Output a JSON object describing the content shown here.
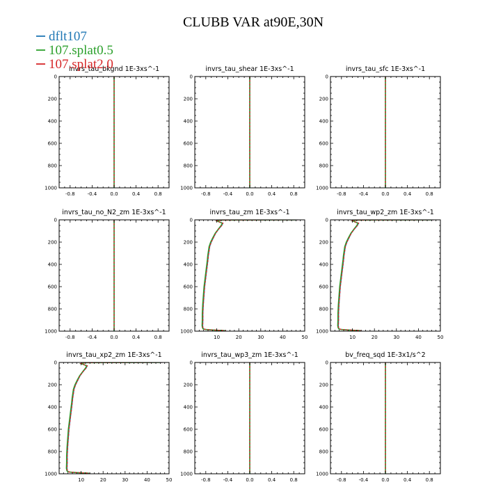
{
  "figure": {
    "title": "CLUBB VAR at90E,30N"
  },
  "legend": [
    {
      "name": "dflt107",
      "color": "#1f77b4"
    },
    {
      "name": "107.splat0.5",
      "color": "#2ca02c"
    },
    {
      "name": "107.splat2.0",
      "color": "#d62728"
    }
  ],
  "chart_data": [
    {
      "type": "line",
      "title": "invrs_tau_bkgnd 1E-3xs^-1",
      "xlim": [
        -1,
        1
      ],
      "ylim": [
        1000,
        0
      ],
      "xticks": [
        "-0.8",
        "-0.4",
        "0.0",
        "0.4",
        "0.8"
      ],
      "xtick_values": [
        -0.8,
        -0.4,
        0,
        0.4,
        0.8
      ],
      "yticks": [
        "0",
        "200",
        "400",
        "600",
        "800",
        "1000"
      ],
      "ytick_values": [
        0,
        200,
        400,
        600,
        800,
        1000
      ],
      "series": [
        {
          "name": "dflt107",
          "x": [
            0,
            0
          ],
          "y": [
            0,
            1000
          ]
        },
        {
          "name": "107.splat0.5",
          "x": [
            0,
            0
          ],
          "y": [
            0,
            1000
          ]
        },
        {
          "name": "107.splat2.0",
          "x": [
            0,
            0
          ],
          "y": [
            0,
            1000
          ]
        }
      ]
    },
    {
      "type": "line",
      "title": "invrs_tau_shear 1E-3xs^-1",
      "xlim": [
        -1,
        1
      ],
      "ylim": [
        1000,
        0
      ],
      "xticks": [
        "-0.8",
        "-0.4",
        "0.0",
        "0.4",
        "0.8"
      ],
      "xtick_values": [
        -0.8,
        -0.4,
        0,
        0.4,
        0.8
      ],
      "yticks": [
        "0",
        "200",
        "400",
        "600",
        "800",
        "1000"
      ],
      "ytick_values": [
        0,
        200,
        400,
        600,
        800,
        1000
      ],
      "series": [
        {
          "name": "dflt107",
          "x": [
            0,
            0
          ],
          "y": [
            0,
            1000
          ]
        },
        {
          "name": "107.splat0.5",
          "x": [
            0,
            0
          ],
          "y": [
            0,
            1000
          ]
        },
        {
          "name": "107.splat2.0",
          "x": [
            0,
            0
          ],
          "y": [
            0,
            1000
          ]
        }
      ]
    },
    {
      "type": "line",
      "title": "invrs_tau_sfc 1E-3xs^-1",
      "xlim": [
        -1,
        1
      ],
      "ylim": [
        1000,
        0
      ],
      "xticks": [
        "-0.8",
        "-0.4",
        "0.0",
        "0.4",
        "0.8"
      ],
      "xtick_values": [
        -0.8,
        -0.4,
        0,
        0.4,
        0.8
      ],
      "yticks": [
        "0",
        "200",
        "400",
        "600",
        "800",
        "1000"
      ],
      "ytick_values": [
        0,
        200,
        400,
        600,
        800,
        1000
      ],
      "series": [
        {
          "name": "dflt107",
          "x": [
            0,
            0
          ],
          "y": [
            0,
            1000
          ]
        },
        {
          "name": "107.splat0.5",
          "x": [
            0,
            0
          ],
          "y": [
            0,
            1000
          ]
        },
        {
          "name": "107.splat2.0",
          "x": [
            0,
            0
          ],
          "y": [
            0,
            1000
          ]
        }
      ]
    },
    {
      "type": "line",
      "title": "invrs_tau_no_N2_zm 1E-3xs^-1",
      "xlim": [
        -1,
        1
      ],
      "ylim": [
        1000,
        0
      ],
      "xticks": [
        "-0.8",
        "-0.4",
        "0.0",
        "0.4",
        "0.8"
      ],
      "xtick_values": [
        -0.8,
        -0.4,
        0,
        0.4,
        0.8
      ],
      "yticks": [
        "0",
        "200",
        "400",
        "600",
        "800",
        "1000"
      ],
      "ytick_values": [
        0,
        200,
        400,
        600,
        800,
        1000
      ],
      "series": [
        {
          "name": "dflt107",
          "x": [
            0,
            0
          ],
          "y": [
            0,
            1000
          ]
        },
        {
          "name": "107.splat0.5",
          "x": [
            0,
            0
          ],
          "y": [
            0,
            1000
          ]
        },
        {
          "name": "107.splat2.0",
          "x": [
            0,
            0
          ],
          "y": [
            0,
            1000
          ]
        }
      ]
    },
    {
      "type": "line",
      "title": "invrs_tau_zm 1E-3xs^-1",
      "xlim": [
        0,
        50
      ],
      "ylim": [
        1000,
        0
      ],
      "xticks": [
        "10",
        "20",
        "30",
        "40",
        "50"
      ],
      "xtick_values": [
        10,
        20,
        30,
        40,
        50
      ],
      "yticks": [
        "0",
        "200",
        "400",
        "600",
        "800",
        "1000"
      ],
      "ytick_values": [
        0,
        200,
        400,
        600,
        800,
        1000
      ],
      "series": [
        {
          "name": "dflt107",
          "x": [
            47,
            12,
            10,
            12.8,
            12.3,
            11,
            9.5,
            8.5,
            7.5,
            6.8,
            6.5,
            6.2,
            6.0,
            5.5,
            5.0,
            4.5,
            4.2,
            3.9,
            3.7,
            3.7,
            3.6,
            3.7,
            4.0,
            5.0,
            9.0,
            14.0
          ],
          "y": [
            0,
            2,
            10,
            30,
            50,
            80,
            120,
            160,
            200,
            240,
            280,
            320,
            360,
            440,
            520,
            600,
            680,
            760,
            840,
            900,
            950,
            970,
            980,
            985,
            990,
            995
          ]
        },
        {
          "name": "107.splat0.5",
          "x": [
            46,
            12,
            10,
            12.5,
            12.0,
            10.8,
            9.3,
            8.2,
            7.2,
            6.5,
            6.2,
            5.9,
            5.7,
            5.2,
            4.7,
            4.2,
            3.9,
            3.6,
            3.4,
            3.4,
            3.3,
            3.5,
            3.8,
            4.8,
            8.5,
            13.5
          ],
          "y": [
            0,
            2,
            10,
            30,
            50,
            80,
            120,
            160,
            200,
            240,
            280,
            320,
            360,
            440,
            520,
            600,
            680,
            760,
            840,
            900,
            950,
            970,
            980,
            985,
            990,
            995
          ]
        },
        {
          "name": "107.splat2.0",
          "x": [
            47,
            12,
            10,
            12.8,
            12.3,
            11,
            9.5,
            8.5,
            7.5,
            6.8,
            6.5,
            6.2,
            6.0,
            5.5,
            5.0,
            4.5,
            4.2,
            3.9,
            3.7,
            3.7,
            3.6,
            3.7,
            4.0,
            5.0,
            9.0,
            14.0
          ],
          "y": [
            0,
            2,
            10,
            30,
            50,
            80,
            120,
            160,
            200,
            240,
            280,
            320,
            360,
            440,
            520,
            600,
            680,
            760,
            840,
            900,
            950,
            970,
            980,
            985,
            990,
            995
          ]
        }
      ]
    },
    {
      "type": "line",
      "title": "invrs_tau_wp2_zm 1E-3xs^-1",
      "xlim": [
        0,
        50
      ],
      "ylim": [
        1000,
        0
      ],
      "xticks": [
        "10",
        "20",
        "30",
        "40",
        "50"
      ],
      "xtick_values": [
        10,
        20,
        30,
        40,
        50
      ],
      "yticks": [
        "0",
        "200",
        "400",
        "600",
        "800",
        "1000"
      ],
      "ytick_values": [
        0,
        200,
        400,
        600,
        800,
        1000
      ],
      "series": [
        {
          "name": "dflt107",
          "x": [
            47,
            12,
            10,
            12.8,
            12.3,
            11,
            9.5,
            8.5,
            7.5,
            6.8,
            6.5,
            6.2,
            6.0,
            5.5,
            5.0,
            4.5,
            4.2,
            3.9,
            3.7,
            3.7,
            3.6,
            3.7,
            4.0,
            5.0,
            9.0,
            14.0
          ],
          "y": [
            0,
            2,
            10,
            30,
            50,
            80,
            120,
            160,
            200,
            240,
            280,
            320,
            360,
            440,
            520,
            600,
            680,
            760,
            840,
            900,
            950,
            970,
            980,
            985,
            990,
            995
          ]
        },
        {
          "name": "107.splat0.5",
          "x": [
            46,
            12,
            10,
            12.5,
            12.0,
            10.8,
            9.3,
            8.2,
            7.2,
            6.5,
            6.2,
            5.9,
            5.7,
            5.2,
            4.7,
            4.2,
            3.9,
            3.6,
            3.4,
            3.4,
            3.3,
            3.5,
            3.8,
            4.8,
            8.5,
            13.5
          ],
          "y": [
            0,
            2,
            10,
            30,
            50,
            80,
            120,
            160,
            200,
            240,
            280,
            320,
            360,
            440,
            520,
            600,
            680,
            760,
            840,
            900,
            950,
            970,
            980,
            985,
            990,
            995
          ]
        },
        {
          "name": "107.splat2.0",
          "x": [
            47,
            12,
            10,
            12.8,
            12.3,
            11,
            9.5,
            8.5,
            7.5,
            6.8,
            6.5,
            6.2,
            6.0,
            5.5,
            5.0,
            4.5,
            4.2,
            3.9,
            3.7,
            3.7,
            3.6,
            3.7,
            4.0,
            5.0,
            9.0,
            14.0
          ],
          "y": [
            0,
            2,
            10,
            30,
            50,
            80,
            120,
            160,
            200,
            240,
            280,
            320,
            360,
            440,
            520,
            600,
            680,
            760,
            840,
            900,
            950,
            970,
            980,
            985,
            990,
            995
          ]
        }
      ]
    },
    {
      "type": "line",
      "title": "invrs_tau_xp2_zm 1E-3xs^-1",
      "xlim": [
        0,
        50
      ],
      "ylim": [
        1000,
        0
      ],
      "xticks": [
        "10",
        "20",
        "30",
        "40",
        "50"
      ],
      "xtick_values": [
        10,
        20,
        30,
        40,
        50
      ],
      "yticks": [
        "0",
        "200",
        "400",
        "600",
        "800",
        "1000"
      ],
      "ytick_values": [
        0,
        200,
        400,
        600,
        800,
        1000
      ],
      "series": [
        {
          "name": "dflt107",
          "x": [
            47,
            12,
            10,
            12.8,
            12.3,
            11,
            9.5,
            8.5,
            7.5,
            6.8,
            6.5,
            6.2,
            6.0,
            5.5,
            5.0,
            4.5,
            4.2,
            3.9,
            3.7,
            3.7,
            3.6,
            3.7,
            4.0,
            5.0,
            9.0,
            14.0
          ],
          "y": [
            0,
            2,
            10,
            30,
            50,
            80,
            120,
            160,
            200,
            240,
            280,
            320,
            360,
            440,
            520,
            600,
            680,
            760,
            840,
            900,
            950,
            970,
            980,
            985,
            990,
            995
          ]
        },
        {
          "name": "107.splat0.5",
          "x": [
            46,
            12,
            10,
            12.5,
            12.0,
            10.8,
            9.3,
            8.2,
            7.2,
            6.5,
            6.2,
            5.9,
            5.7,
            5.2,
            4.7,
            4.2,
            3.9,
            3.6,
            3.4,
            3.4,
            3.3,
            3.5,
            3.8,
            4.8,
            8.5,
            13.5
          ],
          "y": [
            0,
            2,
            10,
            30,
            50,
            80,
            120,
            160,
            200,
            240,
            280,
            320,
            360,
            440,
            520,
            600,
            680,
            760,
            840,
            900,
            950,
            970,
            980,
            985,
            990,
            995
          ]
        },
        {
          "name": "107.splat2.0",
          "x": [
            47,
            12,
            10,
            12.8,
            12.3,
            11,
            9.5,
            8.5,
            7.5,
            6.8,
            6.5,
            6.2,
            6.0,
            5.5,
            5.0,
            4.5,
            4.2,
            3.9,
            3.7,
            3.7,
            3.6,
            3.7,
            4.0,
            5.0,
            9.0,
            14.0
          ],
          "y": [
            0,
            2,
            10,
            30,
            50,
            80,
            120,
            160,
            200,
            240,
            280,
            320,
            360,
            440,
            520,
            600,
            680,
            760,
            840,
            900,
            950,
            970,
            980,
            985,
            990,
            995
          ]
        }
      ]
    },
    {
      "type": "line",
      "title": "invrs_tau_wp3_zm 1E-3xs^-1",
      "xlim": [
        -1,
        1
      ],
      "ylim": [
        1000,
        0
      ],
      "xticks": [
        "-0.8",
        "-0.4",
        "0.0",
        "0.4",
        "0.8"
      ],
      "xtick_values": [
        -0.8,
        -0.4,
        0,
        0.4,
        0.8
      ],
      "yticks": [
        "0",
        "200",
        "400",
        "600",
        "800",
        "1000"
      ],
      "ytick_values": [
        0,
        200,
        400,
        600,
        800,
        1000
      ],
      "series": [
        {
          "name": "dflt107",
          "x": [
            0,
            0
          ],
          "y": [
            0,
            1000
          ]
        },
        {
          "name": "107.splat0.5",
          "x": [
            0,
            0
          ],
          "y": [
            0,
            1000
          ]
        },
        {
          "name": "107.splat2.0",
          "x": [
            0,
            0
          ],
          "y": [
            0,
            1000
          ]
        }
      ]
    },
    {
      "type": "line",
      "title": "bv_freq_sqd 1E-3x1/s^2",
      "xlim": [
        -1,
        1
      ],
      "ylim": [
        1000,
        0
      ],
      "xticks": [
        "-0.8",
        "-0.4",
        "0.0",
        "0.4",
        "0.8"
      ],
      "xtick_values": [
        -0.8,
        -0.4,
        0,
        0.4,
        0.8
      ],
      "yticks": [
        "0",
        "200",
        "400",
        "600",
        "800",
        "1000"
      ],
      "ytick_values": [
        0,
        200,
        400,
        600,
        800,
        1000
      ],
      "series": [
        {
          "name": "dflt107",
          "x": [
            0,
            0
          ],
          "y": [
            0,
            1000
          ]
        },
        {
          "name": "107.splat0.5",
          "x": [
            0,
            0
          ],
          "y": [
            0,
            1000
          ]
        },
        {
          "name": "107.splat2.0",
          "x": [
            0,
            0
          ],
          "y": [
            0,
            1000
          ]
        }
      ]
    }
  ]
}
